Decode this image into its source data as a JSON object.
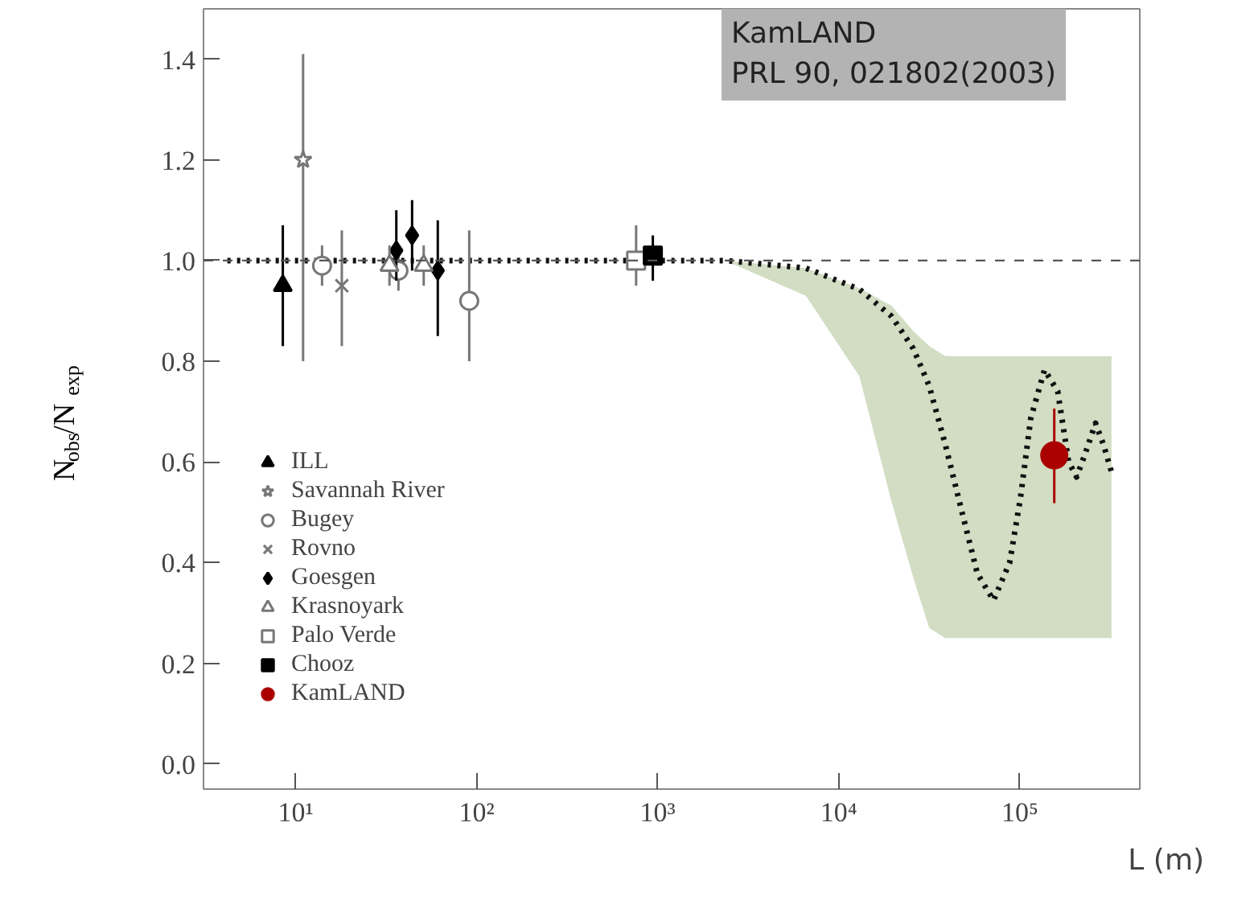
{
  "chart_data": {
    "type": "scatter",
    "xlabel": "L (m)",
    "ylabel": "N$_{obs}$/N$_{exp}$",
    "annotations": [
      "KamLAND\nPRL 90, 021802(2003)"
    ],
    "log": "x",
    "xlim": [
      3.1,
      460000
    ],
    "ylim": [
      -0.05,
      1.5
    ],
    "xticks": [
      {
        "value": 10,
        "label": "10¹"
      },
      {
        "value": 100,
        "label": "10²"
      },
      {
        "value": 1000,
        "label": "10³"
      },
      {
        "value": 10000,
        "label": "10⁴"
      },
      {
        "value": 100000,
        "label": "10⁵"
      }
    ],
    "yticks": [
      {
        "value": 0,
        "label": "0.0"
      },
      {
        "value": 0.2,
        "label": "0.2"
      },
      {
        "value": 0.4,
        "label": "0.4"
      },
      {
        "value": 0.6,
        "label": "0.6"
      },
      {
        "value": 0.8,
        "label": "0.8"
      },
      {
        "value": 1.0,
        "label": "1.0"
      },
      {
        "value": 1.2,
        "label": "1.2"
      },
      {
        "value": 1.4,
        "label": "1.4"
      }
    ],
    "grid": false,
    "legend": "bottom left",
    "ref_lines": [
      {
        "axis": "y",
        "value": 1.0,
        "color": "#555555",
        "line_style": "dashed"
      }
    ],
    "series": [
      {
        "type": "line",
        "color": "#111111",
        "colors": [
          "#d2ddc3",
          "#d2ddc3",
          "#d2ddc3",
          "#d2ddc3",
          "#d2ddc3",
          "#d2ddc3",
          "#d2ddc3",
          "#d2ddc3",
          "#d2ddc3",
          "#d2ddc3",
          "#d2ddc3",
          "#d2ddc3",
          "#d2ddc3",
          "#d2ddc3",
          "#d2ddc3",
          "#d2ddc3",
          "#d2ddc3",
          "#d2ddc3",
          "#d2ddc3",
          "#d2ddc3",
          "#d2ddc3",
          "#d2ddc3",
          "#d2ddc3"
        ],
        "line_style": "dotted",
        "x": [
          4.2,
          849,
          2360,
          6580,
          13000,
          19600,
          25800,
          31600,
          38800,
          47500,
          58300,
          71600,
          87900,
          100700,
          115000,
          137000,
          162000,
          186000,
          206000,
          228000,
          262000,
          290000,
          321000
        ],
        "values": [
          1.0,
          1.0,
          1.0,
          0.985,
          0.943,
          0.889,
          0.825,
          0.751,
          0.634,
          0.506,
          0.378,
          0.325,
          0.4,
          0.527,
          0.687,
          0.783,
          0.74,
          0.6,
          0.57,
          0.613,
          0.677,
          0.634,
          0.58
        ],
        "lower": [
          null,
          null,
          1.0,
          0.93,
          0.77,
          0.52,
          0.37,
          0.27,
          0.25,
          0.25,
          0.25,
          0.25,
          0.25,
          0.25,
          0.25,
          0.25,
          0.25,
          0.25,
          0.25,
          0.25,
          0.25,
          0.25,
          0.25
        ],
        "upper": [
          null,
          null,
          1.0,
          0.985,
          0.945,
          0.91,
          0.86,
          0.83,
          0.81,
          0.81,
          0.81,
          0.81,
          0.81,
          0.81,
          0.81,
          0.81,
          0.81,
          0.81,
          0.81,
          0.81,
          0.81,
          0.81,
          0.81
        ]
      },
      {
        "name": "ILL",
        "color": "#000000",
        "marker": "triangle",
        "x": [
          8.5
        ],
        "values": [
          0.95
        ],
        "errors": [
          [
            0.83,
            1.07
          ]
        ]
      },
      {
        "name": "Savannah River",
        "color": "#777777",
        "marker": "star",
        "x": [
          11
        ],
        "values": [
          1.2
        ],
        "errors": [
          [
            0.8,
            1.41
          ]
        ]
      },
      {
        "name": "Bugey",
        "color": "#777777",
        "marker": "circle",
        "x": [
          14,
          37,
          91
        ],
        "values": [
          0.99,
          0.98,
          0.92
        ],
        "errors": [
          [
            0.95,
            1.03
          ],
          [
            0.94,
            1.02
          ],
          [
            0.8,
            1.06
          ]
        ]
      },
      {
        "name": "Rovno",
        "color": "#777777",
        "marker": "cross",
        "x": [
          18
        ],
        "values": [
          0.95
        ],
        "errors": [
          [
            0.83,
            1.06
          ]
        ]
      },
      {
        "name": "Goesgen",
        "color": "#000000",
        "marker": "diamond",
        "x": [
          36,
          44,
          61
        ],
        "values": [
          1.02,
          1.05,
          0.98
        ],
        "errors": [
          [
            0.96,
            1.1
          ],
          [
            0.98,
            1.12
          ],
          [
            0.85,
            1.08
          ]
        ]
      },
      {
        "name": "Krasnoyark",
        "color": "#777777",
        "marker": "triangle",
        "x": [
          33,
          51
        ],
        "values": [
          0.99,
          0.99
        ],
        "errors": [
          [
            0.95,
            1.03
          ],
          [
            0.95,
            1.03
          ]
        ]
      },
      {
        "name": "Palo Verde",
        "color": "#777777",
        "marker": "square",
        "x": [
          760
        ],
        "values": [
          1.0
        ],
        "errors": [
          [
            0.95,
            1.07
          ]
        ]
      },
      {
        "name": "Chooz",
        "color": "#000000",
        "marker": "square",
        "x": [
          940
        ],
        "values": [
          1.01
        ],
        "errors": [
          [
            0.96,
            1.05
          ]
        ]
      },
      {
        "name": "KamLAND",
        "color": "#aa0000",
        "marker": "circle",
        "x": [
          155000
        ],
        "values": [
          0.613
        ],
        "errors": [
          [
            0.518,
            0.706
          ]
        ]
      }
    ]
  }
}
